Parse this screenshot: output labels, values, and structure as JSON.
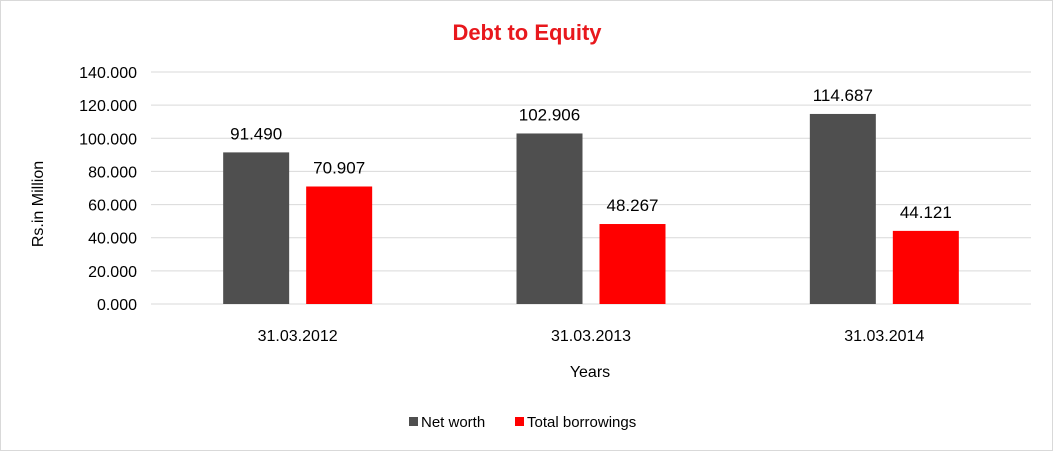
{
  "chart_data": {
    "type": "bar",
    "title": "Debt to Equity",
    "xlabel": "Years",
    "ylabel": "Rs.in Million",
    "categories": [
      "31.03.2012",
      "31.03.2013",
      "31.03.2014"
    ],
    "series": [
      {
        "name": "Net worth",
        "values": [
          91.49,
          102.906,
          114.687
        ],
        "labels": [
          "91.490",
          "102.906",
          "114.687"
        ],
        "color": "#4f4f4f"
      },
      {
        "name": "Total borrowings",
        "values": [
          70.907,
          48.267,
          44.121
        ],
        "labels": [
          "70.907",
          "48.267",
          "44.121"
        ],
        "color": "#ff0000"
      }
    ],
    "ylim": [
      0,
      140
    ],
    "yticks": [
      "0.000",
      "20.000",
      "40.000",
      "60.000",
      "80.000",
      "100.000",
      "120.000",
      "140.000"
    ],
    "grid": true,
    "legend_position": "bottom",
    "title_color": "#e8181d",
    "grid_color": "#d9d9d9"
  }
}
